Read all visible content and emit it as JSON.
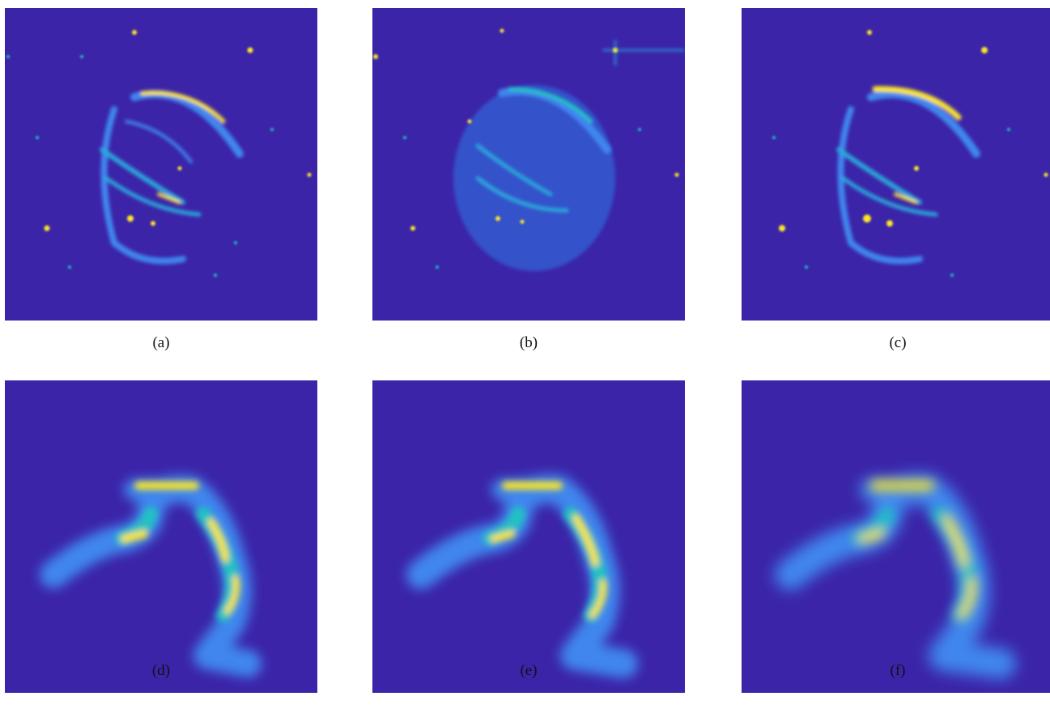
{
  "figure": {
    "captions": [
      "(a)",
      "(b)",
      "(c)",
      "(d)",
      "(e)",
      "(f)"
    ],
    "colormap": {
      "background": "#3b24a8",
      "low": "#2f7fe8",
      "mid": "#22c1c3",
      "high": "#fde725"
    }
  }
}
